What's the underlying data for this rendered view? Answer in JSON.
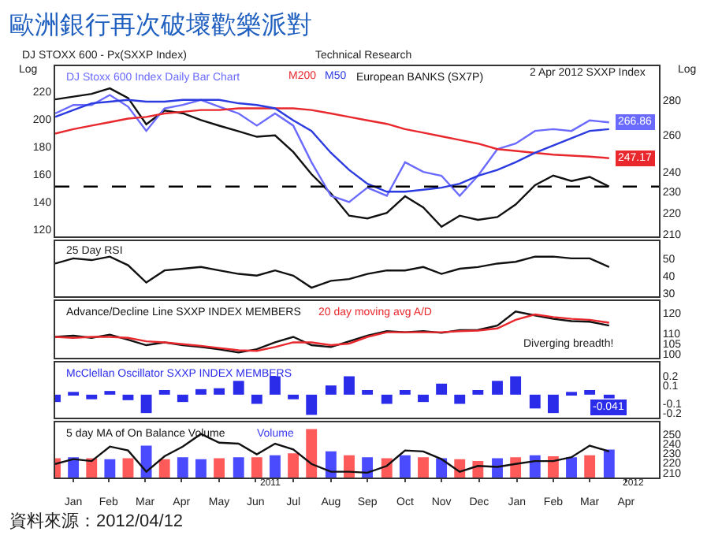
{
  "chart_data": [
    {
      "type": "line",
      "title": "歐洲銀行再次破壞歡樂派對",
      "x": [
        "2011-01-01",
        "2011-01-16",
        "2011-01-31",
        "2011-02-15",
        "2011-03-02",
        "2011-03-17",
        "2011-04-01",
        "2011-04-16",
        "2011-05-01",
        "2011-05-16",
        "2011-06-01",
        "2011-06-16",
        "2011-07-01",
        "2011-07-16",
        "2011-07-31",
        "2011-08-16",
        "2011-08-31",
        "2011-09-15",
        "2011-10-01",
        "2011-10-16",
        "2011-10-31",
        "2011-11-15",
        "2011-11-30",
        "2011-12-15",
        "2011-12-31",
        "2012-01-15",
        "2012-01-31",
        "2012-02-15",
        "2012-03-01",
        "2012-03-16",
        "2012-04-01"
      ],
      "series": [
        {
          "name": "DJ Stoxx 600 Index Daily Bar Chart",
          "color": "#6a6aff",
          "axis": "y2",
          "values": [
            272,
            277,
            277,
            283,
            276,
            262,
            275,
            277,
            280,
            276,
            272,
            265,
            272,
            265,
            245,
            228,
            225,
            232,
            228,
            245,
            240,
            238,
            228,
            238,
            252,
            255,
            262,
            263,
            262,
            268,
            266.86
          ],
          "value_labels": [
            null,
            null,
            null,
            null,
            null,
            null,
            null,
            null,
            null,
            null,
            null,
            null,
            null,
            null,
            null,
            null,
            null,
            null,
            null,
            null,
            null,
            null,
            null,
            null,
            null,
            null,
            null,
            null,
            null,
            null,
            "266.86"
          ]
        },
        {
          "name": "M200",
          "color": "#e8282d",
          "axis": "y2",
          "values": [
            260.5,
            263,
            265,
            267,
            269,
            270,
            272,
            273,
            274,
            274,
            275,
            275,
            275,
            275,
            274,
            272,
            270,
            268,
            266,
            263,
            261,
            259,
            257,
            255,
            252,
            251,
            250,
            249,
            248.5,
            248,
            247.17
          ],
          "value_labels": [
            null,
            null,
            null,
            null,
            null,
            null,
            null,
            null,
            null,
            null,
            null,
            null,
            null,
            null,
            null,
            null,
            null,
            null,
            null,
            null,
            null,
            null,
            null,
            null,
            null,
            null,
            null,
            null,
            null,
            null,
            "247.17"
          ]
        },
        {
          "name": "M50",
          "color": "#2b3be0",
          "axis": "y2",
          "values": [
            270,
            274,
            278,
            279,
            280,
            279,
            279,
            280,
            280,
            280,
            278,
            277,
            275,
            268,
            262,
            250,
            241,
            234,
            230,
            230,
            231,
            232,
            234,
            238,
            241,
            245,
            250,
            254,
            258,
            262,
            263
          ]
        },
        {
          "name": "European BANKS (SX7P)",
          "color": "#111111",
          "values": [
            214,
            216,
            218,
            222,
            215,
            196,
            206,
            204,
            199,
            195,
            191,
            187,
            188,
            176,
            160,
            146,
            130,
            128,
            132,
            144,
            136,
            122,
            130,
            127,
            129,
            138,
            152,
            159,
            155,
            158,
            151
          ]
        }
      ],
      "xlim": [
        "2011-01-01",
        "2012-05-12"
      ],
      "ylim": [
        115,
        238
      ],
      "yticks": [
        120,
        140,
        160,
        180,
        200,
        220
      ],
      "y2lim": [
        209,
        301
      ],
      "y2ticks": [
        210,
        220,
        230,
        240,
        260,
        280
      ],
      "log": "y2",
      "ref_lines": [
        {
          "axis": "y",
          "value": 151,
          "color": "#000000",
          "line_style": "dashed"
        }
      ],
      "annotations": [
        "DJ STOXX 600 - Px(SXXP Index)",
        "Technical Research",
        "2 Apr 2012 SXXP Index",
        "Log",
        "Log"
      ],
      "tick_labels": "y",
      "legend": false
    },
    {
      "type": "line",
      "title": "25 Day RSI",
      "x": [
        "2011-01-01",
        "2011-01-16",
        "2011-01-31",
        "2011-02-15",
        "2011-03-02",
        "2011-03-17",
        "2011-04-01",
        "2011-04-16",
        "2011-05-01",
        "2011-05-16",
        "2011-06-01",
        "2011-06-16",
        "2011-07-01",
        "2011-07-16",
        "2011-07-31",
        "2011-08-16",
        "2011-08-31",
        "2011-09-15",
        "2011-10-01",
        "2011-10-16",
        "2011-10-31",
        "2011-11-15",
        "2011-11-30",
        "2011-12-15",
        "2011-12-31",
        "2012-01-15",
        "2012-01-31",
        "2012-02-15",
        "2012-03-01",
        "2012-03-16",
        "2012-04-01"
      ],
      "series": [
        {
          "color": "#111111",
          "values": [
            47,
            50,
            49,
            51,
            46,
            36,
            43,
            44,
            45,
            43,
            41,
            40,
            43,
            40,
            33,
            37,
            38,
            41,
            43,
            43,
            45,
            41,
            44,
            45,
            47,
            48,
            51,
            51,
            50,
            50,
            45
          ]
        }
      ],
      "xlim": [
        "2011-01-01",
        "2012-05-12"
      ],
      "ylim": [
        28,
        60
      ],
      "yticks": [
        30,
        40,
        50
      ],
      "tick_labels": "y",
      "legend": false
    },
    {
      "type": "line",
      "x": [
        "2011-01-01",
        "2011-01-16",
        "2011-01-31",
        "2011-02-15",
        "2011-03-02",
        "2011-03-17",
        "2011-04-01",
        "2011-04-16",
        "2011-05-01",
        "2011-05-16",
        "2011-06-01",
        "2011-06-16",
        "2011-07-01",
        "2011-07-16",
        "2011-07-31",
        "2011-08-16",
        "2011-08-31",
        "2011-09-15",
        "2011-10-01",
        "2011-10-16",
        "2011-10-31",
        "2011-11-15",
        "2011-11-30",
        "2011-12-15",
        "2011-12-31",
        "2012-01-15",
        "2012-01-31",
        "2012-02-15",
        "2012-03-01",
        "2012-03-16",
        "2012-04-01"
      ],
      "series": [
        {
          "name": "Advance/Decline Line SXXP INDEX MEMBERS",
          "color": "#111111",
          "values": [
            108.3,
            108.9,
            107.8,
            109.4,
            106.9,
            104.2,
            105.6,
            104.2,
            103.3,
            102.2,
            100.6,
            102.2,
            105.6,
            108.3,
            104.2,
            103.3,
            106.1,
            108.9,
            111.1,
            110.6,
            111.1,
            110.3,
            111.6,
            111.7,
            113.9,
            120.8,
            118.9,
            117.2,
            116.1,
            115.8,
            113.9
          ]
        },
        {
          "name": "20 day moving avg A/D",
          "color": "#e8282d",
          "values": [
            108.3,
            107.8,
            108.3,
            108.3,
            107.8,
            106.1,
            105.6,
            104.7,
            103.9,
            102.8,
            101.7,
            101.4,
            103.3,
            105.6,
            105.6,
            104.2,
            105,
            108.3,
            110.6,
            110.6,
            110.6,
            110.6,
            111.1,
            111.4,
            112.5,
            116.7,
            119.4,
            118.1,
            117.2,
            116.7,
            115.3
          ]
        }
      ],
      "annotations": [
        "Diverging breadth!"
      ],
      "xlim": [
        "2011-01-01",
        "2012-05-12"
      ],
      "ylim": [
        98,
        126
      ],
      "yticks": [
        100,
        105,
        110,
        120
      ],
      "tick_labels": "y",
      "legend": false
    },
    {
      "type": "bar",
      "x": [
        "2011-01-01",
        "2011-01-16",
        "2011-01-31",
        "2011-02-15",
        "2011-03-02",
        "2011-03-17",
        "2011-04-01",
        "2011-04-16",
        "2011-05-01",
        "2011-05-16",
        "2011-06-01",
        "2011-06-16",
        "2011-07-01",
        "2011-07-16",
        "2011-07-31",
        "2011-08-16",
        "2011-08-31",
        "2011-09-15",
        "2011-10-01",
        "2011-10-16",
        "2011-10-31",
        "2011-11-15",
        "2011-11-30",
        "2011-12-15",
        "2011-12-31",
        "2012-01-15",
        "2012-01-31",
        "2012-02-15",
        "2012-03-01",
        "2012-03-16",
        "2012-04-01"
      ],
      "series": [
        {
          "name": "McClellan Oscillator SXXP INDEX MEMBERS",
          "color": "#2b2bea",
          "values": [
            -0.08,
            0.03,
            -0.05,
            0.04,
            -0.06,
            -0.2,
            0.05,
            -0.08,
            0.06,
            0.07,
            0.15,
            -0.1,
            0.2,
            -0.05,
            -0.22,
            0.1,
            0.2,
            0.05,
            -0.1,
            0.05,
            -0.08,
            0.12,
            -0.1,
            0.05,
            0.15,
            0.2,
            -0.15,
            -0.2,
            0.03,
            0.05,
            -0.041
          ],
          "value_labels": [
            null,
            null,
            null,
            null,
            null,
            null,
            null,
            null,
            null,
            null,
            null,
            null,
            null,
            null,
            null,
            null,
            null,
            null,
            null,
            null,
            null,
            null,
            null,
            null,
            null,
            null,
            null,
            null,
            null,
            null,
            "-0.041"
          ]
        }
      ],
      "xlim": [
        "2011-01-01",
        "2012-05-12"
      ],
      "ylim": [
        -0.25,
        0.35
      ],
      "yticks": [
        -0.2,
        -0.1,
        0.1,
        0.2
      ],
      "tick_labels": "y",
      "legend": false
    },
    {
      "type": "bar",
      "x": [
        "2011-01-01",
        "2011-01-16",
        "2011-01-31",
        "2011-02-15",
        "2011-03-02",
        "2011-03-17",
        "2011-04-01",
        "2011-04-16",
        "2011-05-01",
        "2011-05-16",
        "2011-06-01",
        "2011-06-16",
        "2011-07-01",
        "2011-07-16",
        "2011-07-31",
        "2011-08-16",
        "2011-08-31",
        "2011-09-15",
        "2011-10-01",
        "2011-10-16",
        "2011-10-31",
        "2011-11-15",
        "2011-11-30",
        "2011-12-15",
        "2011-12-31",
        "2012-01-15",
        "2012-01-31",
        "2012-02-15",
        "2012-03-01",
        "2012-03-16",
        "2012-04-01"
      ],
      "series": [
        {
          "name": "5 day MA of On Balance Volume",
          "color": "#111111",
          "type": "line",
          "values": [
            219,
            224,
            222,
            237,
            233,
            211,
            227,
            237,
            250,
            241,
            240,
            229,
            240,
            234,
            219,
            211,
            211,
            210,
            217,
            233,
            232,
            224,
            211,
            217,
            216,
            219,
            222,
            222,
            226,
            238,
            232
          ]
        },
        {
          "name": "Volume",
          "color": "#3a3af0",
          "colors": [
            "#ff5a5a",
            "#4a4aff",
            "#ff5a5a",
            "#4a4aff",
            "#ff5a5a",
            "#4a4aff",
            "#ff5a5a",
            "#4a4aff",
            "#4a4aff",
            "#ff5a5a",
            "#4a4aff",
            "#ff5a5a",
            "#4a4aff",
            "#ff5a5a",
            "#ff5a5a",
            "#4a4aff",
            "#ff5a5a",
            "#4a4aff",
            "#ff5a5a",
            "#4a4aff",
            "#ff5a5a",
            "#4a4aff",
            "#ff5a5a",
            "#ff5a5a",
            "#4a4aff",
            "#ff5a5a",
            "#4a4aff",
            "#ff5a5a",
            "#4a4aff",
            "#ff5a5a",
            "#4a4aff"
          ],
          "values": [
            225,
            226,
            225,
            224,
            225,
            238,
            224,
            226,
            224,
            225,
            226,
            226,
            228,
            230,
            255,
            232,
            228,
            226,
            225,
            228,
            226,
            225,
            224,
            222,
            225,
            226,
            228,
            227,
            226,
            228,
            234
          ]
        }
      ],
      "annotations": [
        "2011",
        "2012",
        "資料來源：2012/04/12"
      ],
      "xlim": [
        "2011-01-01",
        "2012-05-12"
      ],
      "ylim": [
        205,
        262
      ],
      "yticks": [
        210,
        220,
        230,
        240,
        250
      ],
      "xticks": [
        {
          "value": "2011-01-16",
          "label": "Jan"
        },
        {
          "value": "2011-02-14",
          "label": "Feb"
        },
        {
          "value": "2011-03-16",
          "label": "Mar"
        },
        {
          "value": "2011-04-15",
          "label": "Apr"
        },
        {
          "value": "2011-05-16",
          "label": "May"
        },
        {
          "value": "2011-06-15",
          "label": "Jun"
        },
        {
          "value": "2011-07-16",
          "label": "Jul"
        },
        {
          "value": "2011-08-16",
          "label": "Aug"
        },
        {
          "value": "2011-09-15",
          "label": "Sep"
        },
        {
          "value": "2011-10-16",
          "label": "Oct"
        },
        {
          "value": "2011-11-15",
          "label": "Nov"
        },
        {
          "value": "2011-12-16",
          "label": "Dec"
        },
        {
          "value": "2012-01-16",
          "label": "Jan"
        },
        {
          "value": "2012-02-15",
          "label": "Feb"
        },
        {
          "value": "2012-03-16",
          "label": "Mar"
        },
        {
          "value": "2012-04-15",
          "label": "Apr"
        }
      ],
      "legend": false
    }
  ]
}
